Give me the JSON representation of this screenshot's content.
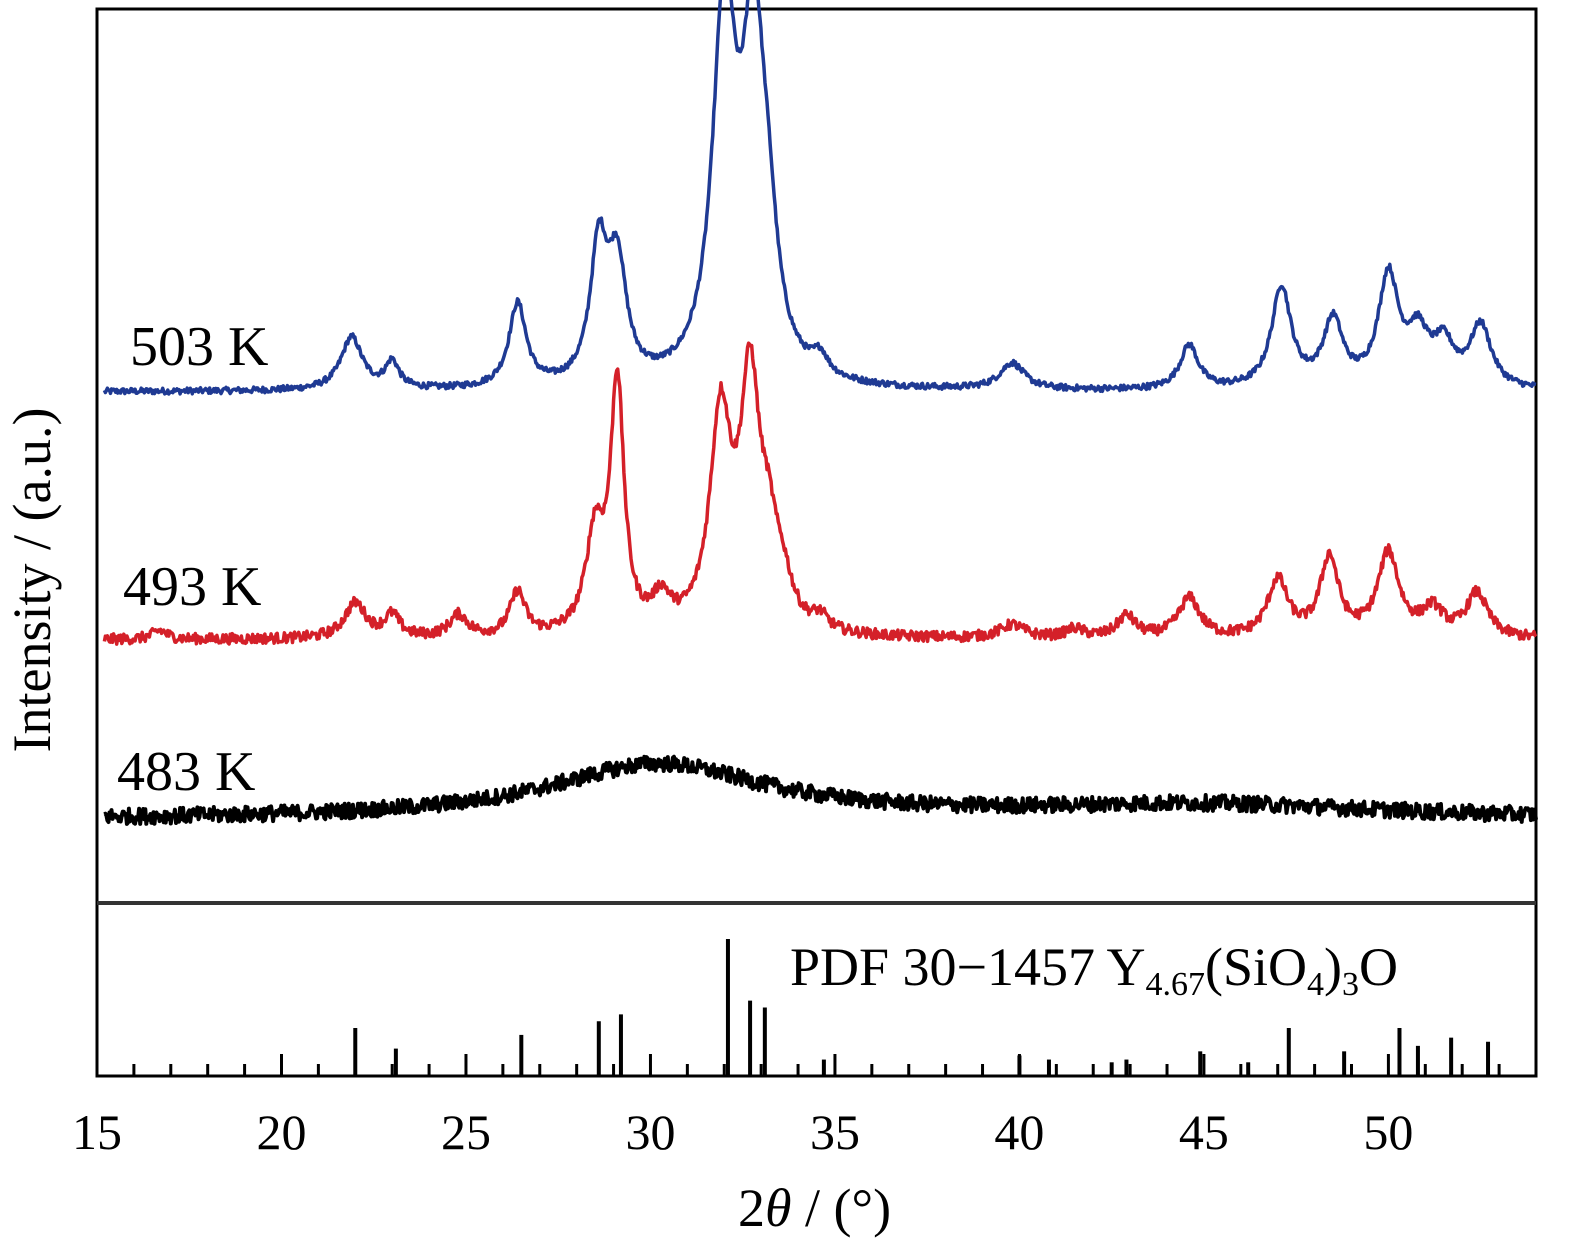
{
  "chart_data": {
    "type": "line",
    "xlabel_prefix": "2",
    "xlabel_symbol": "θ",
    "xlabel_suffix": " / (°)",
    "ylabel": "Intensity / (a.u.)",
    "xlim": [
      15,
      54
    ],
    "x_ticks": [
      "15",
      "20",
      "25",
      "30",
      "35",
      "40",
      "45",
      "50"
    ],
    "grid": false,
    "series": [
      {
        "name": "503 K",
        "color": "#1f3a93",
        "baseline": 0,
        "noise": 0.35,
        "peaks": [
          {
            "x": 21.9,
            "h": 6.0,
            "w": 0.35
          },
          {
            "x": 23.0,
            "h": 3.0,
            "w": 0.22
          },
          {
            "x": 26.4,
            "h": 9.5,
            "w": 0.28
          },
          {
            "x": 28.6,
            "h": 15.0,
            "w": 0.28
          },
          {
            "x": 29.1,
            "h": 13.0,
            "w": 0.3
          },
          {
            "x": 32.0,
            "h": 41.5,
            "w": 0.38
          },
          {
            "x": 32.8,
            "h": 37.0,
            "w": 0.38
          },
          {
            "x": 33.2,
            "h": 9.0,
            "w": 0.3
          },
          {
            "x": 34.6,
            "h": 2.2,
            "w": 0.25
          },
          {
            "x": 39.8,
            "h": 3.0,
            "w": 0.4
          },
          {
            "x": 44.6,
            "h": 5.0,
            "w": 0.3
          },
          {
            "x": 47.1,
            "h": 11.5,
            "w": 0.32
          },
          {
            "x": 48.5,
            "h": 7.5,
            "w": 0.32
          },
          {
            "x": 50.0,
            "h": 12.5,
            "w": 0.33
          },
          {
            "x": 50.8,
            "h": 5.5,
            "w": 0.35
          },
          {
            "x": 51.5,
            "h": 4.5,
            "w": 0.35
          },
          {
            "x": 52.5,
            "h": 7.0,
            "w": 0.35
          }
        ]
      },
      {
        "name": "493 K",
        "color": "#d42029",
        "baseline": 0,
        "noise": 0.6,
        "peaks": [
          {
            "x": 16.7,
            "h": 1.0,
            "w": 0.25
          },
          {
            "x": 22.0,
            "h": 4.0,
            "w": 0.35
          },
          {
            "x": 23.0,
            "h": 2.5,
            "w": 0.25
          },
          {
            "x": 24.8,
            "h": 2.5,
            "w": 0.3
          },
          {
            "x": 26.4,
            "h": 5.0,
            "w": 0.25
          },
          {
            "x": 28.5,
            "h": 11.0,
            "w": 0.3
          },
          {
            "x": 29.1,
            "h": 28.0,
            "w": 0.22
          },
          {
            "x": 30.3,
            "h": 3.5,
            "w": 0.3
          },
          {
            "x": 31.9,
            "h": 24.0,
            "w": 0.35
          },
          {
            "x": 32.7,
            "h": 27.0,
            "w": 0.32
          },
          {
            "x": 33.2,
            "h": 8.0,
            "w": 0.3
          },
          {
            "x": 33.6,
            "h": 4.0,
            "w": 0.3
          },
          {
            "x": 34.6,
            "h": 1.5,
            "w": 0.25
          },
          {
            "x": 39.8,
            "h": 1.5,
            "w": 0.4
          },
          {
            "x": 41.5,
            "h": 1.0,
            "w": 0.3
          },
          {
            "x": 42.9,
            "h": 2.5,
            "w": 0.3
          },
          {
            "x": 44.6,
            "h": 4.5,
            "w": 0.35
          },
          {
            "x": 47.0,
            "h": 6.5,
            "w": 0.33
          },
          {
            "x": 48.4,
            "h": 9.0,
            "w": 0.3
          },
          {
            "x": 50.0,
            "h": 9.5,
            "w": 0.35
          },
          {
            "x": 51.2,
            "h": 3.0,
            "w": 0.35
          },
          {
            "x": 52.4,
            "h": 5.0,
            "w": 0.35
          }
        ]
      },
      {
        "name": "483 K",
        "color": "#000000",
        "baseline": 0,
        "noise": 0.9,
        "peaks": [
          {
            "x": 30.2,
            "h": 6.2,
            "w": 3.6
          },
          {
            "x": 45.0,
            "h": 1.6,
            "w": 6.0
          }
        ]
      }
    ],
    "reference": {
      "label_prefix": "PDF 30−1457 Y",
      "label_sub1": "4.67",
      "label_mid": "(SiO",
      "label_sub2": "4",
      "label_close": ")",
      "label_sub3": "3",
      "label_end": "O",
      "lines": [
        {
          "x": 22.0,
          "h": 35
        },
        {
          "x": 23.1,
          "h": 20
        },
        {
          "x": 26.5,
          "h": 30
        },
        {
          "x": 28.6,
          "h": 40
        },
        {
          "x": 29.2,
          "h": 45
        },
        {
          "x": 32.1,
          "h": 100
        },
        {
          "x": 32.7,
          "h": 55
        },
        {
          "x": 33.1,
          "h": 50
        },
        {
          "x": 34.7,
          "h": 12
        },
        {
          "x": 40.0,
          "h": 15
        },
        {
          "x": 40.8,
          "h": 12
        },
        {
          "x": 42.5,
          "h": 10
        },
        {
          "x": 42.9,
          "h": 12
        },
        {
          "x": 44.9,
          "h": 18
        },
        {
          "x": 46.2,
          "h": 10
        },
        {
          "x": 47.3,
          "h": 35
        },
        {
          "x": 48.8,
          "h": 18
        },
        {
          "x": 50.3,
          "h": 35
        },
        {
          "x": 50.8,
          "h": 22
        },
        {
          "x": 51.7,
          "h": 28
        },
        {
          "x": 52.7,
          "h": 25
        }
      ]
    }
  }
}
